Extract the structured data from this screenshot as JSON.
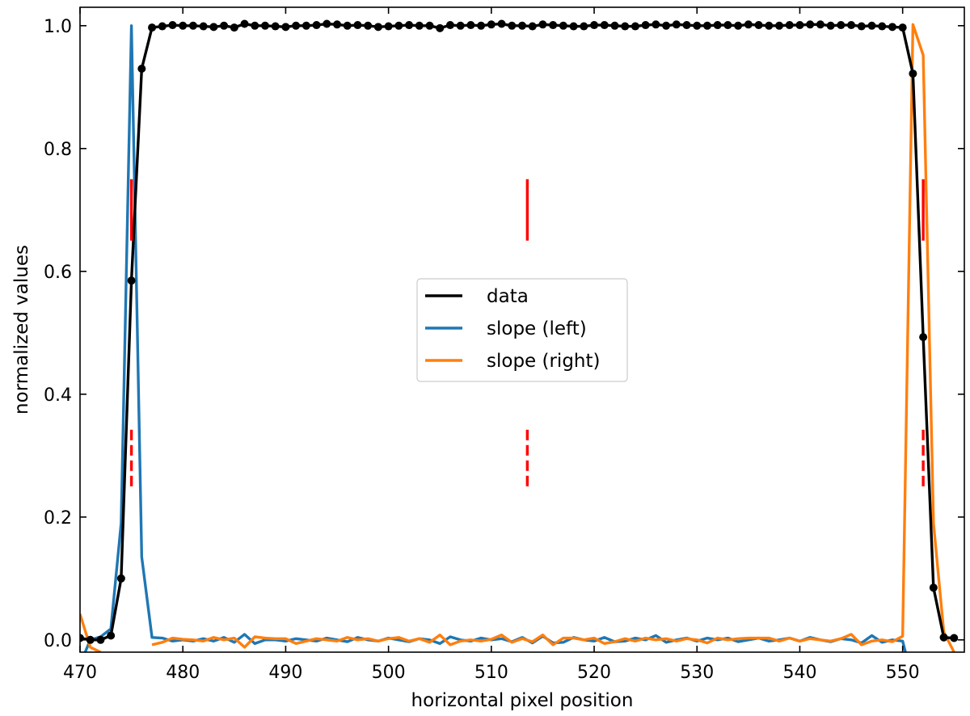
{
  "chart_data": {
    "type": "line",
    "title": "",
    "xlabel": "horizontal pixel position",
    "ylabel": "normalized values",
    "xlim": [
      470,
      556
    ],
    "ylim": [
      -0.02,
      1.03
    ],
    "xticks": [
      470,
      480,
      490,
      500,
      510,
      520,
      530,
      540,
      550
    ],
    "xtick_labels": [
      "470",
      "480",
      "490",
      "500",
      "510",
      "520",
      "530",
      "540",
      "550"
    ],
    "yticks": [
      0.0,
      0.2,
      0.4,
      0.6,
      0.8,
      1.0
    ],
    "ytick_labels": [
      "0.0",
      "0.2",
      "0.4",
      "0.6",
      "0.8",
      "1.0"
    ],
    "grid": false,
    "legend_placement": "center",
    "series": [
      {
        "name": "data",
        "color": "#000000",
        "markers": true,
        "x": [
          470,
          471,
          472,
          473,
          474,
          475,
          476,
          477,
          478,
          479,
          480,
          481,
          482,
          483,
          484,
          485,
          486,
          487,
          488,
          489,
          490,
          491,
          492,
          493,
          494,
          495,
          496,
          497,
          498,
          499,
          500,
          501,
          502,
          503,
          504,
          505,
          506,
          507,
          508,
          509,
          510,
          511,
          512,
          513,
          514,
          515,
          516,
          517,
          518,
          519,
          520,
          521,
          522,
          523,
          524,
          525,
          526,
          527,
          528,
          529,
          530,
          531,
          532,
          533,
          534,
          535,
          536,
          537,
          538,
          539,
          540,
          541,
          542,
          543,
          544,
          545,
          546,
          547,
          548,
          549,
          550,
          551,
          552,
          553,
          554,
          555
        ],
        "y": [
          0.003,
          0.0,
          0.0,
          0.007,
          0.1,
          0.585,
          0.93,
          0.997,
          0.999,
          1.001,
          1.0,
          1.0,
          0.999,
          0.998,
          1.0,
          0.997,
          1.003,
          1.0,
          1.0,
          0.999,
          0.998,
          1.0,
          1.0,
          1.001,
          1.003,
          1.002,
          1.0,
          1.001,
          1.0,
          0.998,
          0.999,
          1.0,
          1.001,
          1.0,
          1.0,
          0.996,
          1.001,
          1.0,
          1.001,
          1.0,
          1.002,
          1.003,
          1.0,
          1.0,
          0.999,
          1.002,
          1.001,
          1.0,
          0.999,
          0.999,
          1.001,
          1.001,
          1.0,
          0.999,
          0.999,
          1.001,
          1.002,
          1.0,
          1.002,
          1.001,
          1.0,
          1.0,
          1.001,
          1.001,
          1.0,
          1.002,
          1.001,
          1.0,
          1.0,
          1.001,
          1.001,
          1.002,
          1.002,
          1.0,
          1.001,
          1.001,
          0.999,
          1.0,
          0.999,
          0.998,
          0.997,
          0.922,
          0.493,
          0.085,
          0.004,
          0.003
        ]
      },
      {
        "name": "slope (left)",
        "color": "#1f77b4",
        "markers": false,
        "x": [
          470,
          470.5,
          471,
          472,
          473,
          474,
          475,
          476,
          477,
          478,
          479,
          480,
          481,
          482,
          483,
          484,
          485,
          486,
          487,
          488,
          489,
          490,
          491,
          492,
          493,
          494,
          495,
          496,
          497,
          498,
          499,
          500,
          501,
          502,
          503,
          504,
          505,
          506,
          507,
          508,
          509,
          510,
          511,
          512,
          513,
          514,
          515,
          516,
          517,
          518,
          519,
          520,
          521,
          522,
          523,
          524,
          525,
          526,
          527,
          528,
          529,
          530,
          531,
          532,
          533,
          534,
          535,
          536,
          537,
          538,
          539,
          540,
          541,
          542,
          543,
          544,
          545,
          546,
          547,
          548,
          549,
          550,
          550.5
        ],
        "y": [
          -0.03,
          -0.02,
          0.0,
          0.005,
          0.018,
          0.19,
          1.0,
          0.135,
          0.004,
          0.003,
          -0.002,
          0.0,
          -0.002,
          0.002,
          -0.002,
          0.004,
          -0.004,
          0.009,
          -0.006,
          0.0,
          0.0,
          -0.002,
          0.002,
          0.0,
          -0.002,
          0.003,
          0.0,
          -0.003,
          0.004,
          0.0,
          -0.002,
          0.003,
          0.0,
          -0.003,
          0.002,
          0.0,
          -0.006,
          0.005,
          0.0,
          -0.002,
          0.003,
          0.0,
          0.002,
          -0.003,
          0.004,
          -0.005,
          0.006,
          -0.005,
          -0.004,
          0.004,
          0.0,
          -0.002,
          0.004,
          -0.003,
          -0.002,
          0.003,
          0.0,
          0.007,
          -0.004,
          0.0,
          0.003,
          -0.002,
          0.003,
          0.0,
          0.003,
          -0.003,
          0.0,
          0.003,
          -0.002,
          0.0,
          0.003,
          -0.002,
          0.004,
          0.0,
          -0.003,
          0.002,
          0.0,
          -0.005,
          0.007,
          -0.004,
          0.0,
          -0.002,
          -0.035
        ]
      },
      {
        "name": "slope (right)",
        "color": "#ff7f0e",
        "markers": false,
        "x": [
          470,
          471,
          472,
          473,
          474,
          475,
          476,
          477,
          478,
          479,
          480,
          481,
          482,
          483,
          484,
          485,
          486,
          487,
          488,
          489,
          490,
          491,
          492,
          493,
          494,
          495,
          496,
          497,
          498,
          499,
          500,
          501,
          502,
          503,
          504,
          505,
          506,
          507,
          508,
          509,
          510,
          511,
          512,
          513,
          514,
          515,
          516,
          517,
          518,
          519,
          520,
          521,
          522,
          523,
          524,
          525,
          526,
          527,
          528,
          529,
          530,
          531,
          532,
          533,
          534,
          535,
          536,
          537,
          538,
          539,
          540,
          541,
          542,
          543,
          544,
          545,
          546,
          547,
          548,
          549,
          550,
          551,
          552,
          553,
          554,
          555
        ],
        "y": [
          0.042,
          -0.012,
          -0.02,
          null,
          null,
          null,
          null,
          -0.008,
          -0.004,
          0.003,
          0.001,
          0.0,
          -0.002,
          0.004,
          0.0,
          0.003,
          -0.012,
          0.005,
          0.003,
          0.002,
          0.002,
          -0.006,
          -0.002,
          0.002,
          0.0,
          -0.002,
          0.004,
          0.0,
          0.002,
          -0.002,
          0.002,
          0.004,
          -0.002,
          0.002,
          -0.004,
          0.008,
          -0.008,
          -0.002,
          0.0,
          -0.002,
          0.001,
          0.008,
          -0.004,
          0.002,
          -0.003,
          0.008,
          -0.008,
          0.003,
          0.003,
          0.0,
          0.003,
          -0.006,
          -0.003,
          0.002,
          -0.002,
          0.003,
          0.0,
          0.002,
          -0.002,
          0.002,
          0.0,
          -0.005,
          0.003,
          0.0,
          0.002,
          0.003,
          0.003,
          0.003,
          -0.002,
          0.003,
          -0.002,
          0.002,
          0.0,
          -0.002,
          0.002,
          0.009,
          -0.008,
          -0.002,
          0.0,
          -0.003,
          0.006,
          1.002,
          0.952,
          0.19,
          0.013,
          -0.02
        ]
      }
    ],
    "annotations": [
      {
        "x": 475.0,
        "y_range": [
          0.65,
          0.75
        ],
        "style": "solid",
        "color": "#ff0000"
      },
      {
        "x": 475.0,
        "y_range": [
          0.25,
          0.35
        ],
        "style": "dashed",
        "color": "#ff0000"
      },
      {
        "x": 513.5,
        "y_range": [
          0.65,
          0.75
        ],
        "style": "solid",
        "color": "#ff0000"
      },
      {
        "x": 513.5,
        "y_range": [
          0.25,
          0.35
        ],
        "style": "dashed",
        "color": "#ff0000"
      },
      {
        "x": 552.0,
        "y_range": [
          0.65,
          0.75
        ],
        "style": "solid",
        "color": "#ff0000"
      },
      {
        "x": 552.0,
        "y_range": [
          0.25,
          0.35
        ],
        "style": "dashed",
        "color": "#ff0000"
      }
    ]
  }
}
